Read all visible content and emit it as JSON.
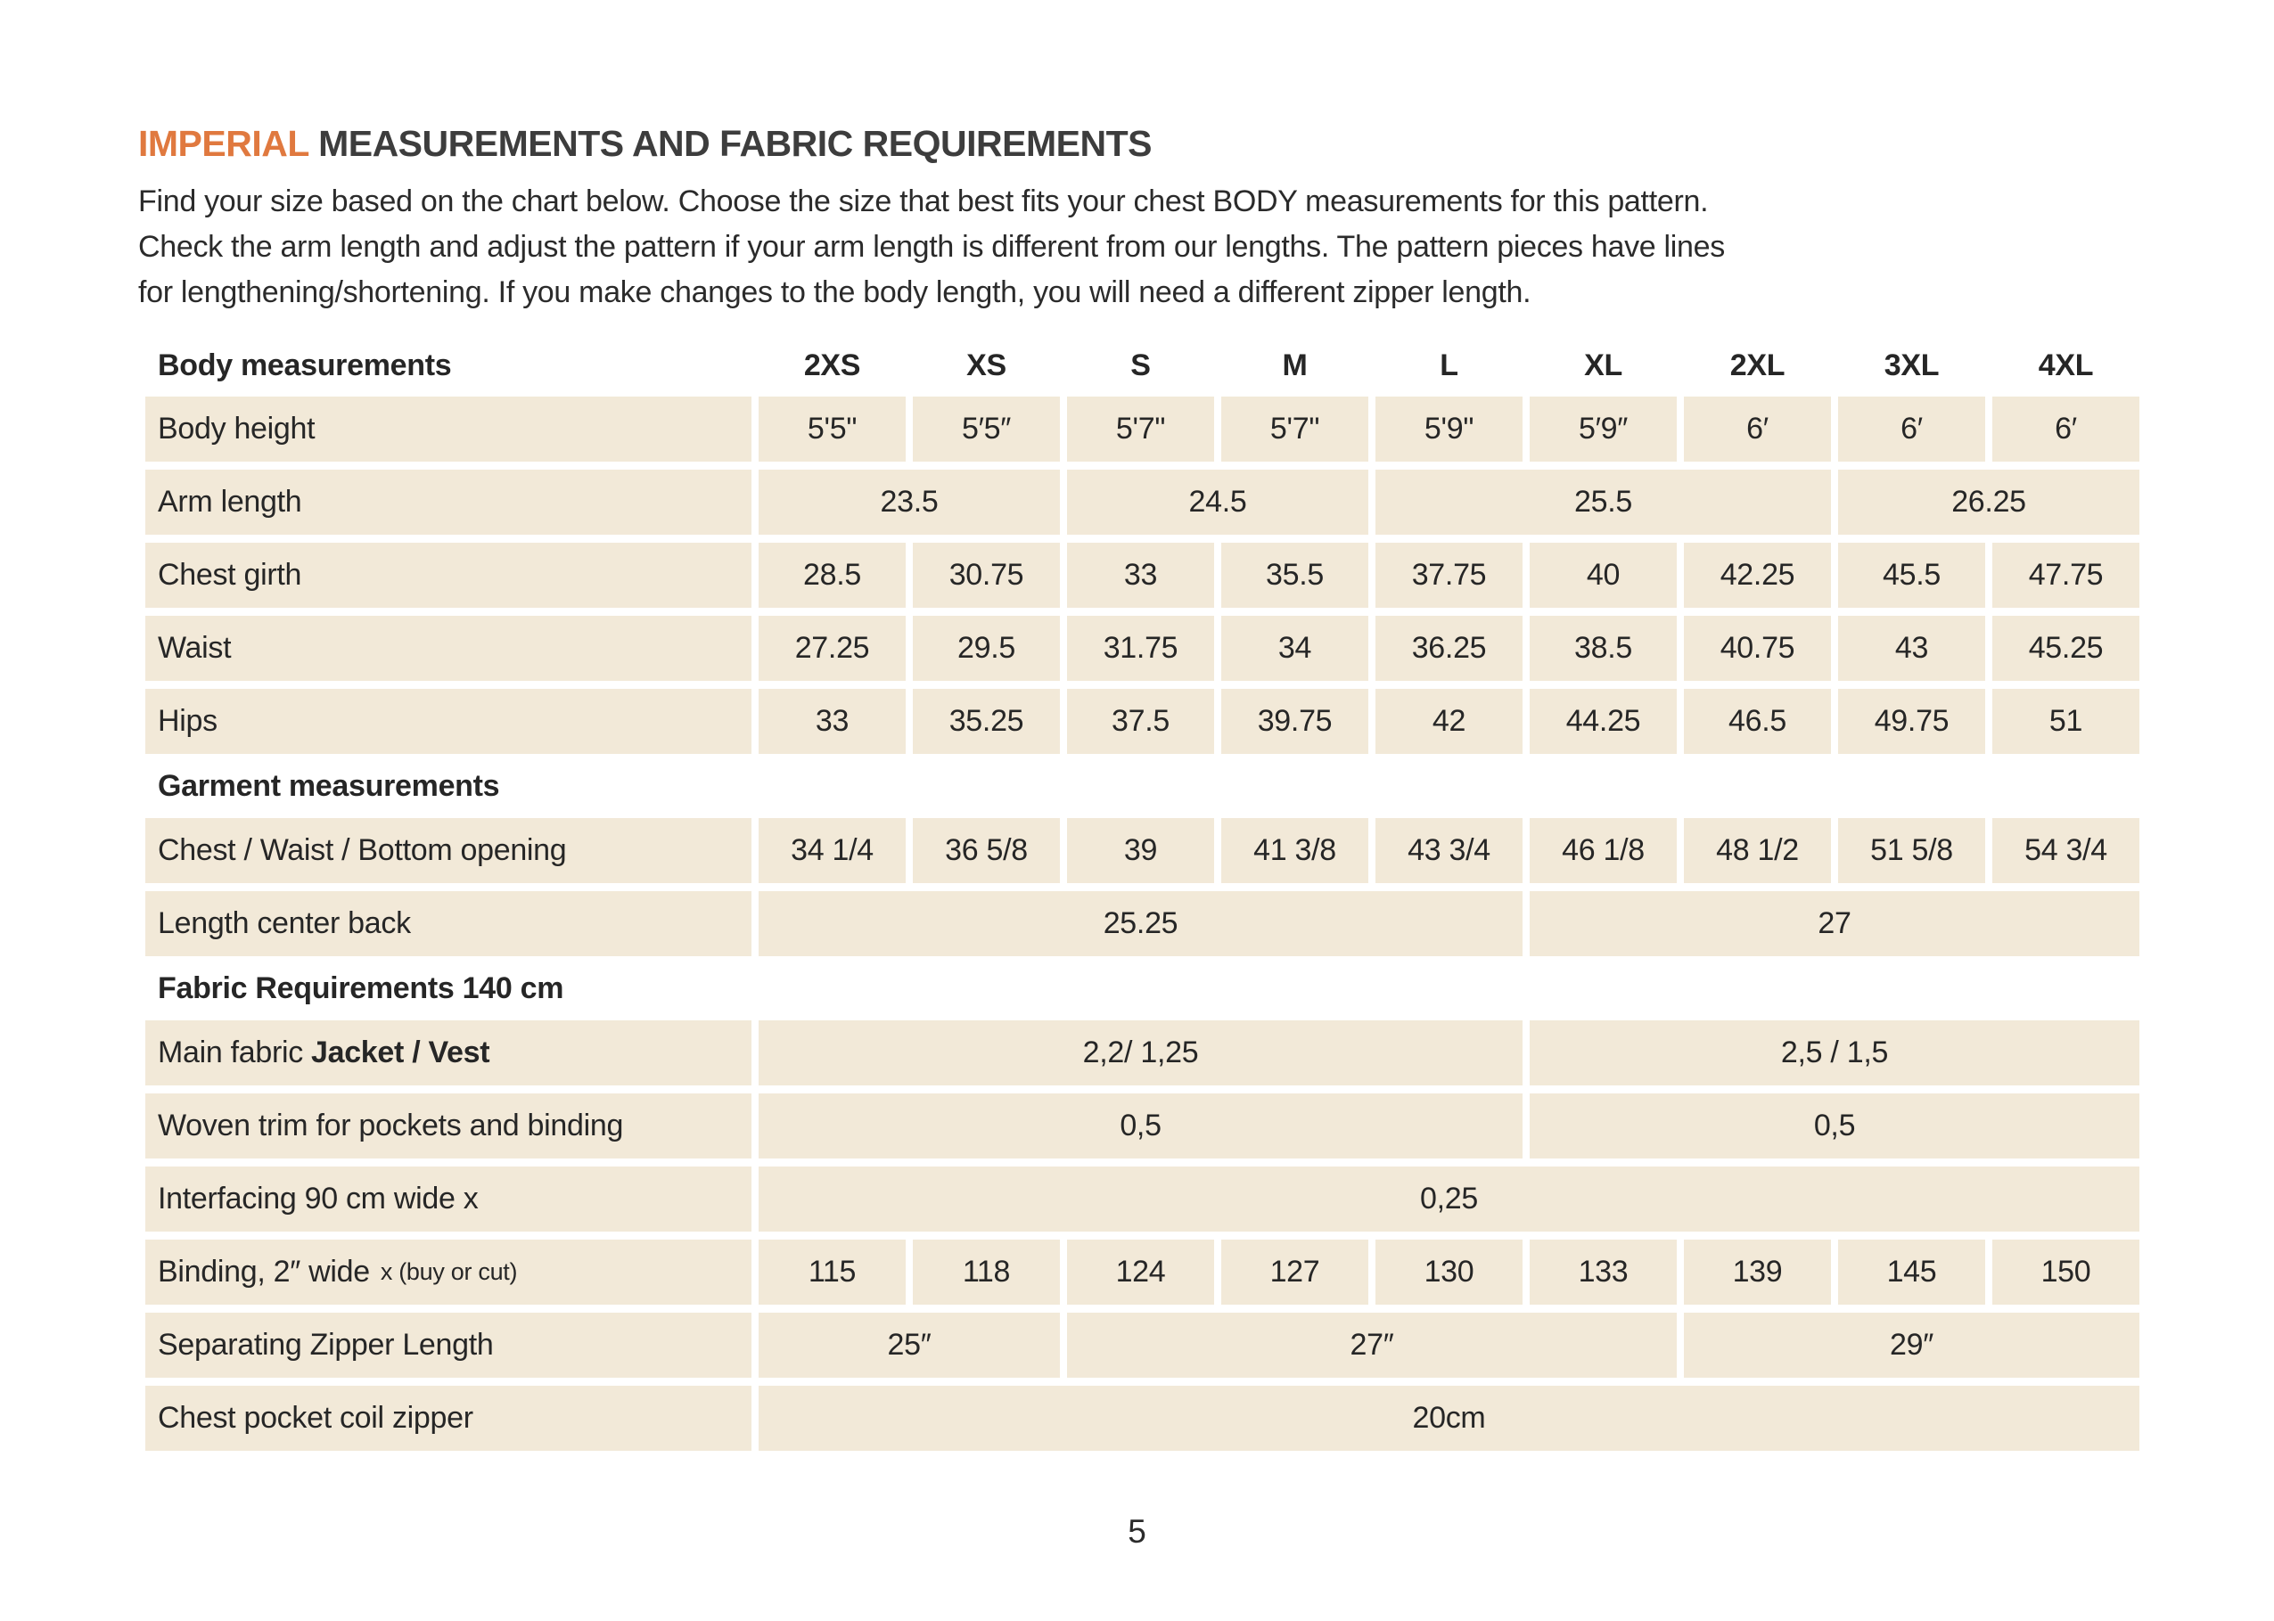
{
  "title": {
    "accent": "IMPERIAL",
    "rest": "MEASUREMENTS AND FABRIC REQUIREMENTS"
  },
  "intro_lines": [
    "Find your size based on the chart below. Choose the size that best fits your chest BODY measurements for this pattern.",
    "Check the arm length and adjust the pattern if your arm length is different from our lengths. The pattern pieces have lines",
    "for lengthening/shortening. If you make changes to the body length, you will need a different zipper length."
  ],
  "colors": {
    "accent": "#e0793f",
    "cell_bg": "#f2e9d8",
    "text": "#2b2b2b"
  },
  "table": {
    "header": {
      "label": "Body measurements",
      "sizes": [
        "2XS",
        "XS",
        "S",
        "M",
        "L",
        "XL",
        "2XL",
        "3XL",
        "4XL"
      ]
    },
    "rows": [
      {
        "type": "data",
        "label": "Body height",
        "cells": [
          {
            "v": "5'5\""
          },
          {
            "v": "5′5″"
          },
          {
            "v": "5'7\""
          },
          {
            "v": "5'7\""
          },
          {
            "v": "5'9\""
          },
          {
            "v": "5′9″"
          },
          {
            "v": "6′"
          },
          {
            "v": "6′"
          },
          {
            "v": "6′"
          }
        ]
      },
      {
        "type": "data",
        "label": "Arm length",
        "cells": [
          {
            "v": "23.5",
            "span": 2
          },
          {
            "v": "24.5",
            "span": 2
          },
          {
            "v": "25.5",
            "span": 3
          },
          {
            "v": "26.25",
            "span": 2
          }
        ]
      },
      {
        "type": "data",
        "label": "Chest girth",
        "cells": [
          {
            "v": "28.5"
          },
          {
            "v": "30.75"
          },
          {
            "v": "33"
          },
          {
            "v": "35.5"
          },
          {
            "v": "37.75"
          },
          {
            "v": "40"
          },
          {
            "v": "42.25"
          },
          {
            "v": "45.5"
          },
          {
            "v": "47.75"
          }
        ]
      },
      {
        "type": "data",
        "label": "Waist",
        "cells": [
          {
            "v": "27.25"
          },
          {
            "v": "29.5"
          },
          {
            "v": "31.75"
          },
          {
            "v": "34"
          },
          {
            "v": "36.25"
          },
          {
            "v": "38.5"
          },
          {
            "v": "40.75"
          },
          {
            "v": "43"
          },
          {
            "v": "45.25"
          }
        ]
      },
      {
        "type": "data",
        "label": "Hips",
        "cells": [
          {
            "v": "33"
          },
          {
            "v": "35.25"
          },
          {
            "v": "37.5"
          },
          {
            "v": "39.75"
          },
          {
            "v": "42"
          },
          {
            "v": "44.25"
          },
          {
            "v": "46.5"
          },
          {
            "v": "49.75"
          },
          {
            "v": "51"
          }
        ]
      },
      {
        "type": "section",
        "label": "Garment measurements"
      },
      {
        "type": "data",
        "label": "Chest / Waist / Bottom opening",
        "cells": [
          {
            "v": "34 1/4"
          },
          {
            "v": "36 5/8"
          },
          {
            "v": "39"
          },
          {
            "v": "41 3/8"
          },
          {
            "v": "43 3/4"
          },
          {
            "v": "46 1/8"
          },
          {
            "v": "48 1/2"
          },
          {
            "v": "51 5/8"
          },
          {
            "v": "54 3/4"
          }
        ]
      },
      {
        "type": "data",
        "label": "Length center back",
        "cells": [
          {
            "v": "25.25",
            "span": 5
          },
          {
            "v": "27",
            "span": 4
          }
        ]
      },
      {
        "type": "section",
        "label": "Fabric Requirements 140 cm"
      },
      {
        "type": "data",
        "label": "Main fabric",
        "label_bold": "Jacket / Vest",
        "cells": [
          {
            "v": "2,2/ 1,25",
            "span": 5
          },
          {
            "v": "2,5 / 1,5",
            "span": 4
          }
        ]
      },
      {
        "type": "data",
        "label": "Woven trim for pockets and binding",
        "cells": [
          {
            "v": "0,5",
            "span": 5
          },
          {
            "v": "0,5",
            "span": 4
          }
        ]
      },
      {
        "type": "data",
        "label": "Interfacing 90 cm wide x",
        "cells": [
          {
            "v": "0,25",
            "span": 9
          }
        ]
      },
      {
        "type": "data",
        "label": "Binding, 2″ wide",
        "label_small": "x (buy or cut)",
        "cells": [
          {
            "v": "115"
          },
          {
            "v": "118"
          },
          {
            "v": "124"
          },
          {
            "v": "127"
          },
          {
            "v": "130"
          },
          {
            "v": "133"
          },
          {
            "v": "139"
          },
          {
            "v": "145"
          },
          {
            "v": "150"
          }
        ]
      },
      {
        "type": "data",
        "label": "Separating Zipper Length",
        "cells": [
          {
            "v": "25″",
            "span": 2
          },
          {
            "v": "27″",
            "span": 4
          },
          {
            "v": "29″",
            "span": 3
          }
        ]
      },
      {
        "type": "data",
        "label": "Chest pocket coil zipper",
        "cells": [
          {
            "v": "20cm",
            "span": 9
          }
        ]
      }
    ]
  },
  "footer": {
    "page_number": "5"
  }
}
